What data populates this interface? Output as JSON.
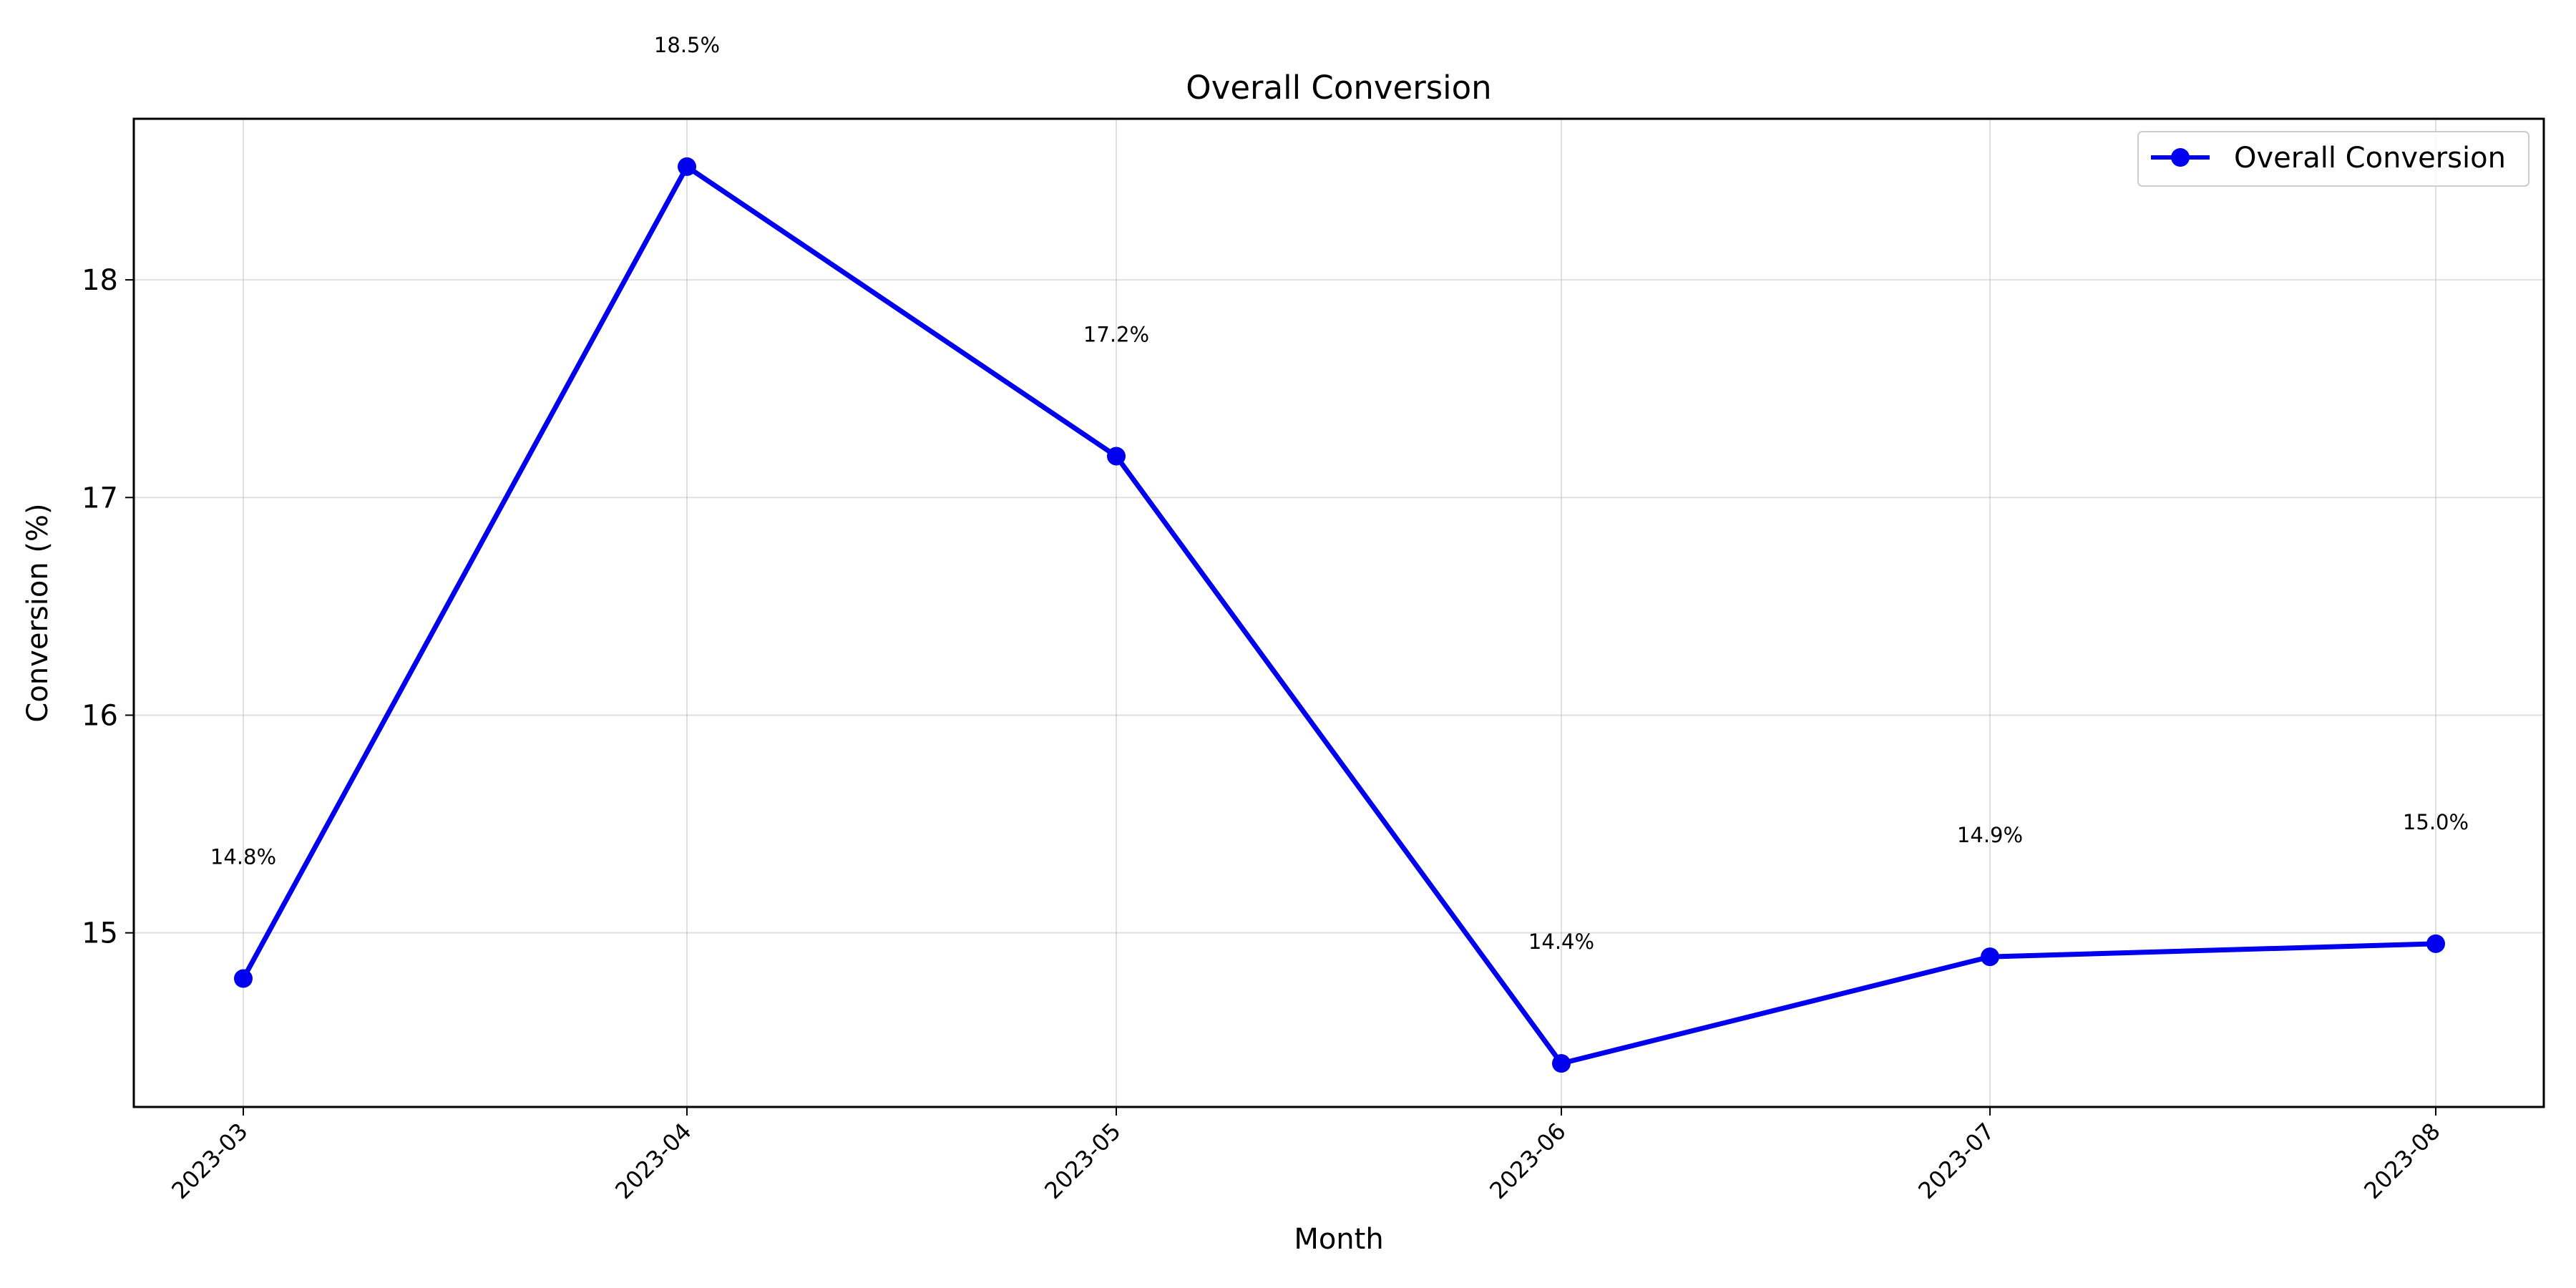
{
  "chart_data": {
    "type": "line",
    "title": "Overall Conversion",
    "xlabel": "Month",
    "ylabel": "Conversion (%)",
    "x": [
      "2023-03",
      "2023-04",
      "2023-05",
      "2023-06",
      "2023-07",
      "2023-08"
    ],
    "series": [
      {
        "name": "Overall Conversion",
        "values": [
          14.79,
          18.52,
          17.19,
          14.4,
          14.89,
          14.95
        ],
        "labels": [
          "14.8%",
          "18.5%",
          "17.2%",
          "14.4%",
          "14.9%",
          "15.0%"
        ],
        "color": "#0000ee"
      }
    ],
    "ylim": [
      14.2,
      18.74
    ],
    "yticks": [
      15,
      16,
      17,
      18
    ],
    "grid": true,
    "legend": "top-right"
  }
}
